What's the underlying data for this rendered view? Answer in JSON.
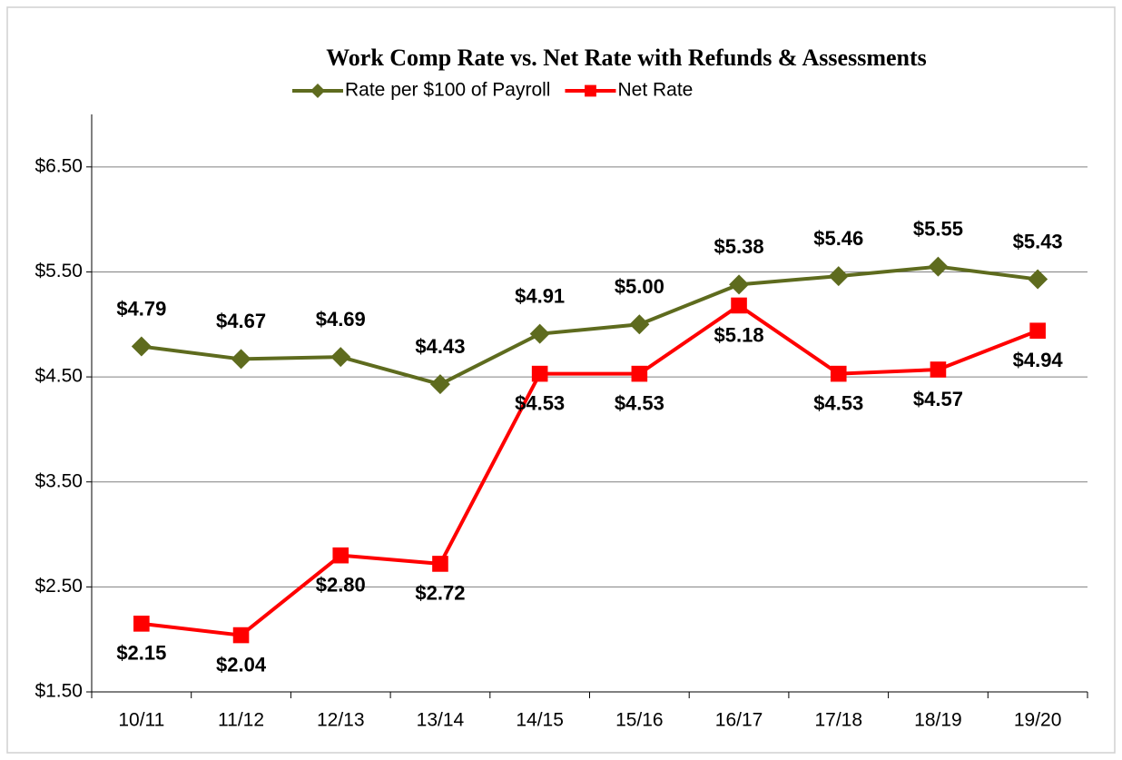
{
  "chart_data": {
    "type": "line",
    "title": "Work Comp Rate vs. Net Rate with Refunds & Assessments",
    "categories": [
      "10/11",
      "11/12",
      "12/13",
      "13/14",
      "14/15",
      "15/16",
      "16/17",
      "17/18",
      "18/19",
      "19/20"
    ],
    "series": [
      {
        "name": "Rate per $100 of Payroll",
        "color": "#5e6b1e",
        "marker": "diamond",
        "values": [
          4.79,
          4.67,
          4.69,
          4.43,
          4.91,
          5.0,
          5.38,
          5.46,
          5.55,
          5.43
        ],
        "value_labels": [
          "$4.79",
          "$4.67",
          "$4.69",
          "$4.43",
          "$4.91",
          "$5.00",
          "$5.38",
          "$5.46",
          "$5.55",
          "$5.43"
        ]
      },
      {
        "name": "Net Rate",
        "color": "#ff0000",
        "marker": "square",
        "values": [
          2.15,
          2.04,
          2.8,
          2.72,
          4.53,
          4.53,
          5.18,
          4.53,
          4.57,
          4.94
        ],
        "value_labels": [
          "$2.15",
          "$2.04",
          "$2.80",
          "$2.72",
          "$4.53",
          "$4.53",
          "$5.18",
          "$4.53",
          "$4.57",
          "$4.94"
        ]
      }
    ],
    "ylim": [
      1.5,
      7.0
    ],
    "yticks": [
      {
        "value": 1.5,
        "label": "$1.50"
      },
      {
        "value": 2.5,
        "label": "$2.50"
      },
      {
        "value": 3.5,
        "label": "$3.50"
      },
      {
        "value": 4.5,
        "label": "$4.50"
      },
      {
        "value": 5.5,
        "label": "$5.50"
      },
      {
        "value": 6.5,
        "label": "$6.50"
      }
    ],
    "grid": true,
    "legend": "top"
  }
}
